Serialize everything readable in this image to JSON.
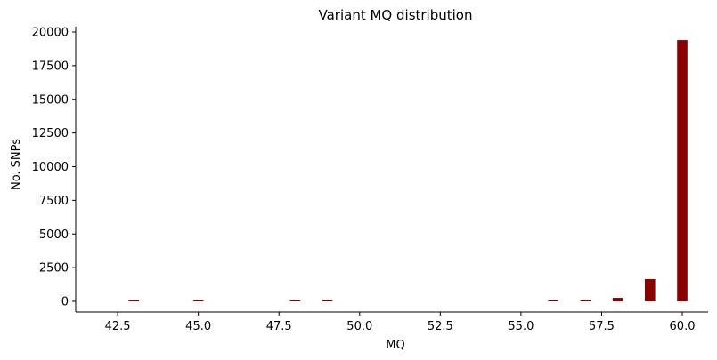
{
  "chart_data": {
    "type": "bar",
    "title": "Variant MQ distribution",
    "xlabel": "MQ",
    "ylabel": "No. SNPs",
    "xlim": [
      41.2,
      60.8
    ],
    "ylim": [
      0,
      20400
    ],
    "xticks": [
      42.5,
      45.0,
      47.5,
      50.0,
      52.5,
      55.0,
      57.5,
      60.0
    ],
    "xtick_labels": [
      "42.5",
      "45.0",
      "47.5",
      "50.0",
      "52.5",
      "55.0",
      "57.5",
      "60.0"
    ],
    "yticks": [
      0,
      2500,
      5000,
      7500,
      10000,
      12500,
      15000,
      17500,
      20000
    ],
    "ytick_labels": [
      "0",
      "2500",
      "5000",
      "7500",
      "10000",
      "12500",
      "15000",
      "17500",
      "20000"
    ],
    "bar_width": 0.32,
    "color": "#8b0000",
    "spines": "left-bottom",
    "grid": false,
    "x": [
      43,
      45,
      48,
      49,
      56,
      57,
      58,
      59,
      60
    ],
    "values": [
      20,
      20,
      40,
      120,
      30,
      120,
      260,
      1650,
      19400
    ]
  }
}
